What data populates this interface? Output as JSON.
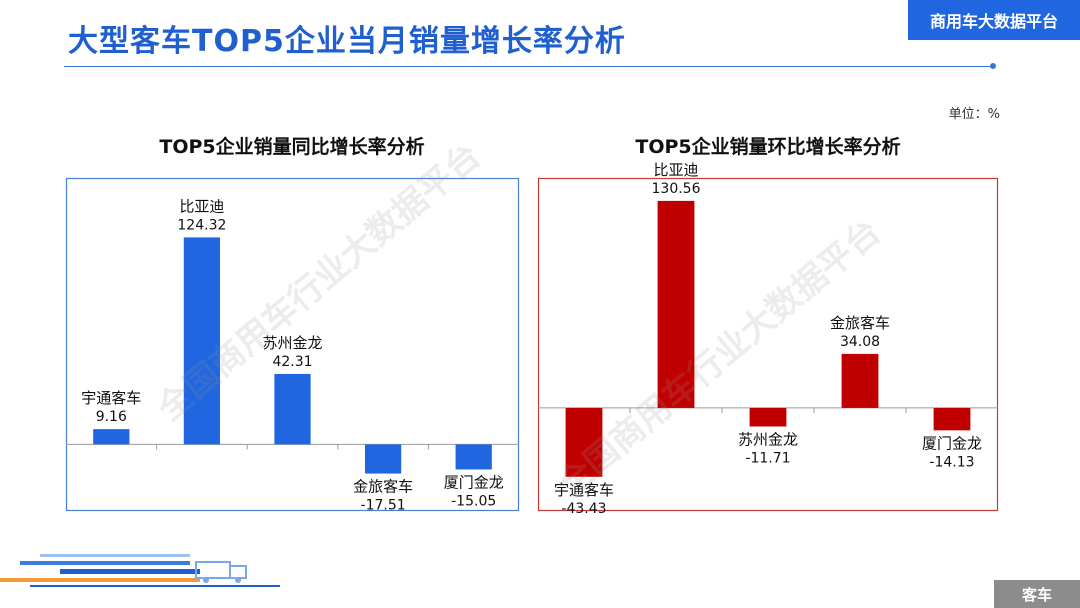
{
  "page": {
    "title": "大型客车TOP5企业当月销量增长率分析",
    "brand": "商用车大数据平台",
    "unit": "单位：%",
    "footer": "客车",
    "watermark": "全国商用车行业大数据平台"
  },
  "colors": {
    "accent": "#1f5fd0",
    "yoy_bar": "#1f66e0",
    "yoy_border": "#4a7fd6",
    "mom_bar": "#c00000",
    "mom_border": "#c83a3a"
  },
  "chart_data": [
    {
      "type": "bar",
      "title": "TOP5企业销量同比增长率分析",
      "categories": [
        "宇通客车",
        "比亚迪",
        "苏州金龙",
        "金旅客车",
        "厦门金龙"
      ],
      "values": [
        9.16,
        124.32,
        42.31,
        -17.51,
        -15.05
      ],
      "value_labels": [
        "9.16",
        "124.32",
        "42.31",
        "-17.51",
        "-15.05"
      ],
      "ylim": [
        -40,
        160
      ],
      "grid": false
    },
    {
      "type": "bar",
      "title": "TOP5企业销量环比增长率分析",
      "categories": [
        "宇通客车",
        "比亚迪",
        "苏州金龙",
        "金旅客车",
        "厦门金龙"
      ],
      "values": [
        -43.43,
        130.56,
        -11.71,
        34.08,
        -14.13
      ],
      "value_labels": [
        "-43.43",
        "130.56",
        "-11.71",
        "34.08",
        "-14.13"
      ],
      "ylim": [
        -65,
        145
      ],
      "grid": false
    }
  ]
}
